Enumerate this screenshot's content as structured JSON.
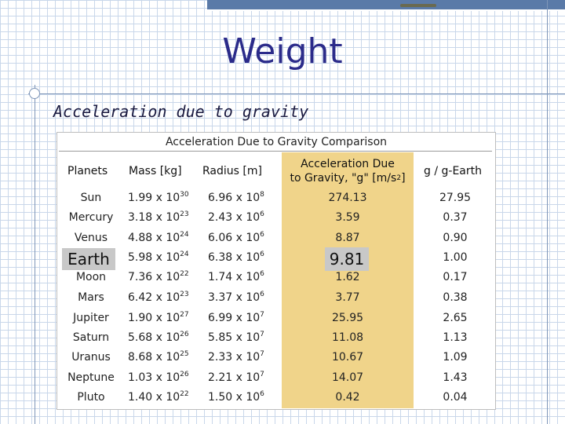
{
  "slide": {
    "title": "Weight",
    "subtitle": "Acceleration due to gravity"
  },
  "table": {
    "caption": "Acceleration Due to Gravity Comparison",
    "headers": {
      "planet": "Planets",
      "mass": "Mass [kg]",
      "radius": "Radius [m]",
      "accel_line1": "Acceleration Due",
      "accel_line2a": "to Gravity, \"g\" [m/s",
      "accel_exp": "2",
      "accel_line2b": "]",
      "ratio": "g / g-Earth"
    },
    "rows": [
      {
        "planet": "Sun",
        "mass_m": "1.99 x 10",
        "mass_e": "30",
        "rad_m": "6.96 x 10",
        "rad_e": "8",
        "g": "274.13",
        "ratio": "27.95"
      },
      {
        "planet": "Mercury",
        "mass_m": "3.18 x 10",
        "mass_e": "23",
        "rad_m": "2.43 x 10",
        "rad_e": "6",
        "g": "3.59",
        "ratio": "0.37"
      },
      {
        "planet": "Venus",
        "mass_m": "4.88 x 10",
        "mass_e": "24",
        "rad_m": "6.06 x 10",
        "rad_e": "6",
        "g": "8.87",
        "ratio": "0.90"
      },
      {
        "planet": "Earth",
        "mass_m": "5.98 x 10",
        "mass_e": "24",
        "rad_m": "6.38 x 10",
        "rad_e": "6",
        "g": "9.81",
        "ratio": "1.00"
      },
      {
        "planet": "Moon",
        "mass_m": "7.36 x 10",
        "mass_e": "22",
        "rad_m": "1.74 x 10",
        "rad_e": "6",
        "g": "1.62",
        "ratio": "0.17"
      },
      {
        "planet": "Mars",
        "mass_m": "6.42 x 10",
        "mass_e": "23",
        "rad_m": "3.37 x 10",
        "rad_e": "6",
        "g": "3.77",
        "ratio": "0.38"
      },
      {
        "planet": "Jupiter",
        "mass_m": "1.90 x 10",
        "mass_e": "27",
        "rad_m": "6.99 x 10",
        "rad_e": "7",
        "g": "25.95",
        "ratio": "2.65"
      },
      {
        "planet": "Saturn",
        "mass_m": "5.68 x 10",
        "mass_e": "26",
        "rad_m": "5.85 x 10",
        "rad_e": "7",
        "g": "11.08",
        "ratio": "1.13"
      },
      {
        "planet": "Uranus",
        "mass_m": "8.68 x 10",
        "mass_e": "25",
        "rad_m": "2.33 x 10",
        "rad_e": "7",
        "g": "10.67",
        "ratio": "1.09"
      },
      {
        "planet": "Neptune",
        "mass_m": "1.03 x 10",
        "mass_e": "26",
        "rad_m": "2.21 x 10",
        "rad_e": "7",
        "g": "14.07",
        "ratio": "1.43"
      },
      {
        "planet": "Pluto",
        "mass_m": "1.40 x 10",
        "mass_e": "22",
        "rad_m": "1.50 x 10",
        "rad_e": "6",
        "g": "0.42",
        "ratio": "0.04"
      }
    ]
  },
  "colors": {
    "title": "#2b2b8a",
    "accent_column": "#f0d48a",
    "highlight": "#c8c8c8",
    "grid": "#c9d7ea"
  }
}
